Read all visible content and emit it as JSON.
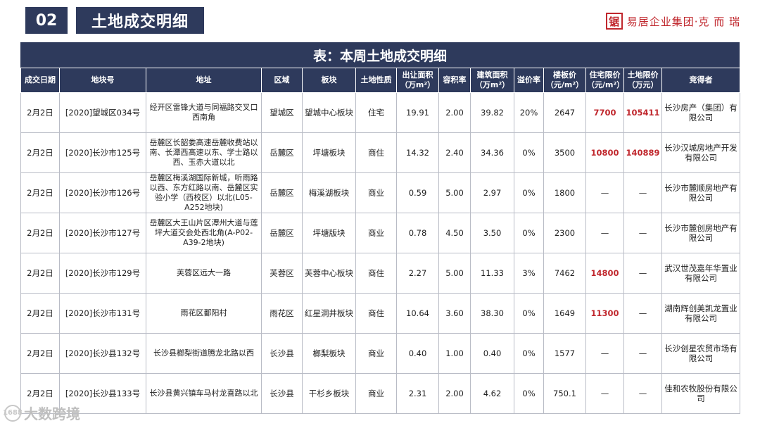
{
  "header": {
    "section_number": "02",
    "section_title": "土地成交明细",
    "brand_logo_char": "锯",
    "brand_name": "易居企业集团·克 而 瑞"
  },
  "table": {
    "title": "表：本周土地成交明细",
    "columns": [
      "成交日期",
      "地块号",
      "地址",
      "区域",
      "板块",
      "土地性质",
      "出让面积（万m²）",
      "容积率",
      "建筑面积（万m²）",
      "溢价率",
      "楼板价（元/m²）",
      "住宅限价（元/m²）",
      "土地限价（万元）",
      "竞得者"
    ],
    "rows": [
      [
        "2月2日",
        "[2020]望城区034号",
        "经开区雷锋大道与同福路交叉口西南角",
        "望城区",
        "望城中心板块",
        "住宅",
        "19.91",
        "2.00",
        "39.82",
        "20%",
        "2647",
        "7700",
        "105411",
        "长沙房产（集团）有限公司"
      ],
      [
        "2月2日",
        "[2020]长沙市125号",
        "岳麓区长韶娄高速岳麓收费站以南、长潭西高速以东、学士路以西、玉赤大道以北",
        "岳麓区",
        "坪塘板块",
        "商住",
        "14.32",
        "2.40",
        "34.36",
        "0%",
        "3500",
        "10800",
        "140889",
        "长沙汉城房地产开发有限公司"
      ],
      [
        "2月2日",
        "[2020]长沙市126号",
        "岳麓区梅溪湖国际新城，听雨路以西、东方红路以南、岳麓区实验小学（西校区）以北(L05-A252地块)",
        "岳麓区",
        "梅溪湖板块",
        "商业",
        "0.59",
        "5.00",
        "2.97",
        "0%",
        "1800",
        "—",
        "—",
        "长沙市麓顺房地产有限公司"
      ],
      [
        "2月2日",
        "[2020]长沙市127号",
        "岳麓区大王山片区潭州大道与莲坪大道交会处西北角(A-P02-A39-2地块)",
        "岳麓区",
        "坪塘版块",
        "商业",
        "0.78",
        "4.50",
        "3.50",
        "0%",
        "2300",
        "—",
        "—",
        "长沙市麓创房地产有限公司"
      ],
      [
        "2月2日",
        "[2020]长沙市129号",
        "芙蓉区远大一路",
        "芙蓉区",
        "芙蓉中心板块",
        "商住",
        "2.27",
        "5.00",
        "11.33",
        "3%",
        "7462",
        "14800",
        "—",
        "武汉世茂嘉年华置业有限公司"
      ],
      [
        "2月2日",
        "[2020]长沙市131号",
        "雨花区鄱阳村",
        "雨花区",
        "红星洞井板块",
        "商住",
        "10.64",
        "3.60",
        "38.30",
        "0%",
        "1649",
        "11300",
        "—",
        "湖南辉创美凯龙置业有限公司"
      ],
      [
        "2月2日",
        "[2020]长沙县132号",
        "长沙县榔梨街道腾龙北路以西",
        "长沙县",
        "榔梨板块",
        "商业",
        "0.40",
        "1.00",
        "0.40",
        "0%",
        "1577",
        "—",
        "—",
        "长沙创星农贸市场有限公司"
      ],
      [
        "2月2日",
        "[2020]长沙县133号",
        "长沙县黄兴镇车马村龙喜路以北",
        "长沙县",
        "干杉乡板块",
        "商业",
        "2.31",
        "2.00",
        "4.62",
        "0%",
        "750.1",
        "—",
        "—",
        "佳和农牧股份有限公司"
      ]
    ]
  },
  "watermark": "大数跨境",
  "watermark_icon": "1688",
  "colors": {
    "header_bg": "#2e3a5c",
    "highlight_red": "#c0272d"
  }
}
